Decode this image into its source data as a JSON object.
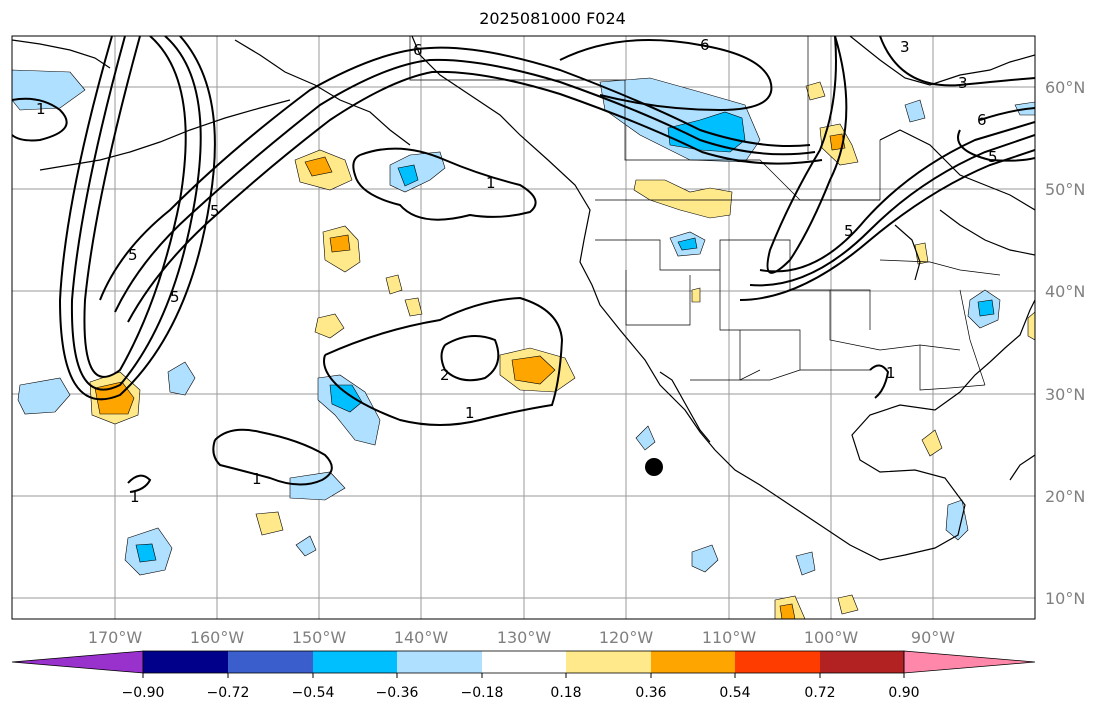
{
  "title": "2025081000 F024",
  "map": {
    "lon_labels": [
      "170°W",
      "160°W",
      "150°W",
      "140°W",
      "130°W",
      "120°W",
      "110°W",
      "100°W",
      "90°W"
    ],
    "lat_labels": [
      "60°N",
      "50°N",
      "40°N",
      "30°N",
      "20°N",
      "10°N"
    ],
    "contour_labels": [
      "6",
      "6",
      "3",
      "3",
      "6",
      "5",
      "1",
      "1",
      "1",
      "1",
      "2",
      "1",
      "1",
      "5",
      "5",
      "5",
      "5"
    ],
    "marker": "storm-center-dot"
  },
  "colorbar": {
    "ticks": [
      "−0.90",
      "−0.72",
      "−0.54",
      "−0.36",
      "−0.18",
      "0.18",
      "0.36",
      "0.54",
      "0.72",
      "0.90"
    ],
    "colors": [
      "#9932cc",
      "#00008b",
      "#3a5fcd",
      "#00bfff",
      "#b0e0ff",
      "#ffffff",
      "#ffe98a",
      "#ffa500",
      "#ff3c00",
      "#b22222",
      "#ff88aa"
    ]
  }
}
